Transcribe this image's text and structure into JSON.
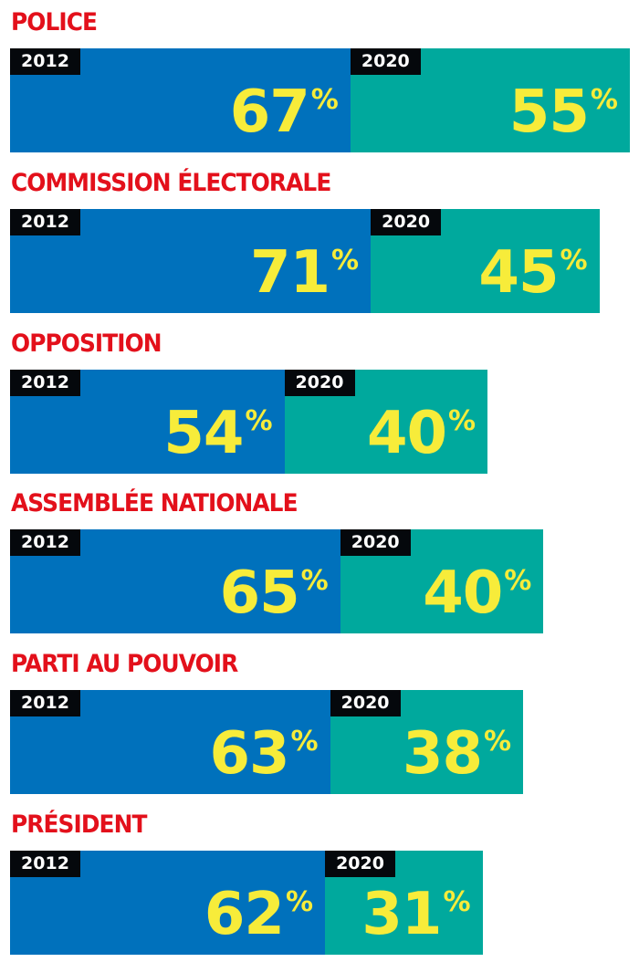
{
  "chart_data": {
    "type": "bar",
    "orientation": "horizontal-stacked",
    "categories": [
      "POLICE",
      "COMMISSION ÉLECTORALE",
      "OPPOSITION",
      "ASSEMBLÉE NATIONALE",
      "PARTI AU POUVOIR",
      "PRÉSIDENT"
    ],
    "series": [
      {
        "name": "2012",
        "values": [
          67,
          71,
          54,
          65,
          63,
          62
        ],
        "color": "#0071bc"
      },
      {
        "name": "2020",
        "values": [
          55,
          45,
          40,
          40,
          38,
          31
        ],
        "color": "#00a99d"
      }
    ],
    "unit": "%",
    "title_color": "#e3101b",
    "value_color": "#f7ec3a",
    "grid": false
  }
}
